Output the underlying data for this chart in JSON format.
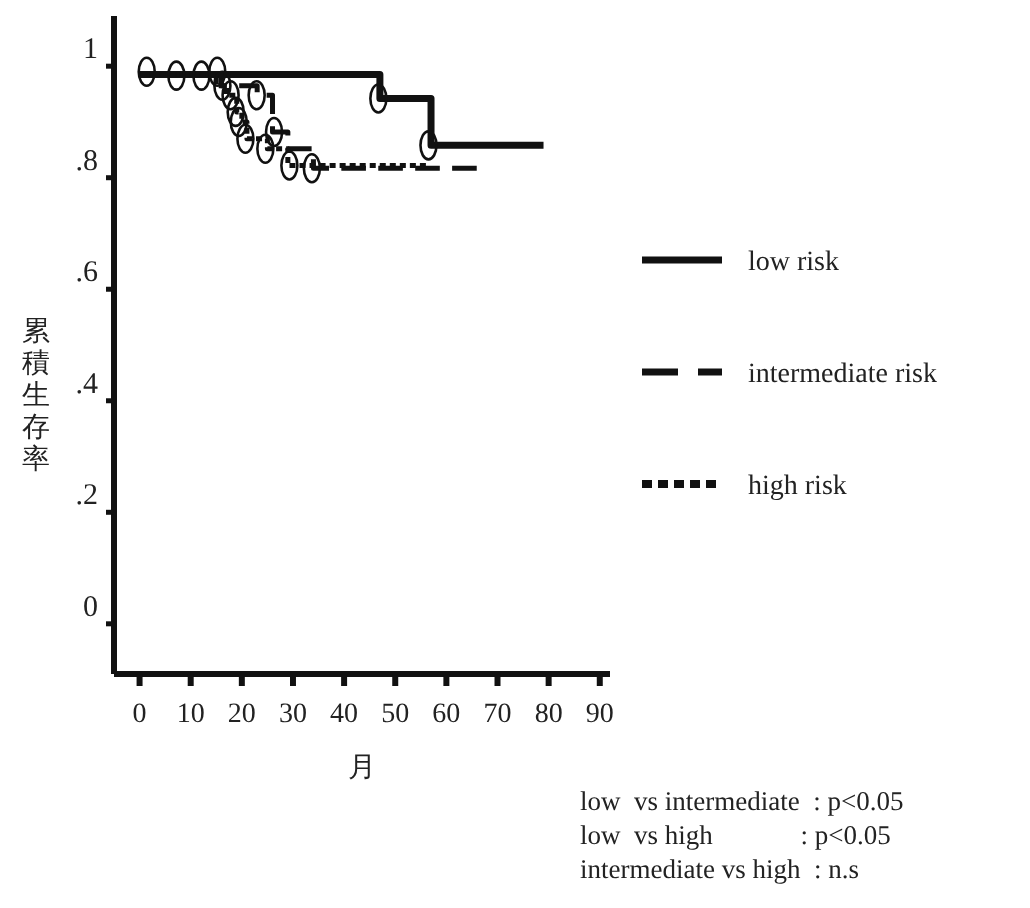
{
  "chart_data": {
    "type": "step",
    "xlabel": "月",
    "ylabel": "累積生存率",
    "xlim": [
      -5,
      92
    ],
    "ylim": [
      -0.09,
      1.09
    ],
    "xticks": [
      0,
      10,
      20,
      30,
      40,
      50,
      60,
      70,
      80,
      90
    ],
    "yticks": [
      {
        "value": 0,
        "label": "0"
      },
      {
        "value": 0.2,
        "label": ".2"
      },
      {
        "value": 0.4,
        "label": ".4"
      },
      {
        "value": 0.6,
        "label": ".6"
      },
      {
        "value": 0.8,
        "label": ".8"
      },
      {
        "value": 1,
        "label": "1"
      }
    ],
    "grid": false,
    "legend": "right",
    "series": [
      {
        "name": "low risk",
        "type": "step",
        "color": "#111111",
        "line_style": "solid",
        "x": [
          0,
          47,
          57,
          79
        ],
        "values": [
          0.985,
          0.942,
          0.858,
          0.858
        ]
      },
      {
        "name": "intermediate risk",
        "type": "step",
        "color": "#111111",
        "line_style": "dashed",
        "x": [
          0,
          16,
          23,
          26,
          29,
          34,
          66
        ],
        "values": [
          0.985,
          0.965,
          0.948,
          0.882,
          0.852,
          0.817,
          0.817
        ]
      },
      {
        "name": "high risk",
        "type": "step",
        "color": "#111111",
        "line_style": "dotted",
        "x": [
          0,
          15,
          17,
          19,
          20,
          21,
          25,
          29,
          56
        ],
        "values": [
          0.985,
          0.965,
          0.948,
          0.918,
          0.9,
          0.87,
          0.852,
          0.822,
          0.822
        ]
      },
      {
        "type": "scatter",
        "color": "#111111",
        "marker": "circle",
        "x": [
          1.4,
          7.2,
          12.1,
          15.2,
          16.2,
          17.8,
          18.8,
          19.4,
          20.7,
          22.9,
          24.6,
          26.3,
          29.3,
          33.7,
          46.7,
          56.5
        ],
        "values": [
          0.99,
          0.983,
          0.983,
          0.99,
          0.965,
          0.948,
          0.918,
          0.9,
          0.87,
          0.948,
          0.852,
          0.882,
          0.822,
          0.817,
          0.942,
          0.858
        ]
      }
    ],
    "annotations": [
      "low  vs intermediate  : p<0.05",
      "low  vs high             : p<0.05",
      "intermediate vs high  : n.s"
    ]
  }
}
